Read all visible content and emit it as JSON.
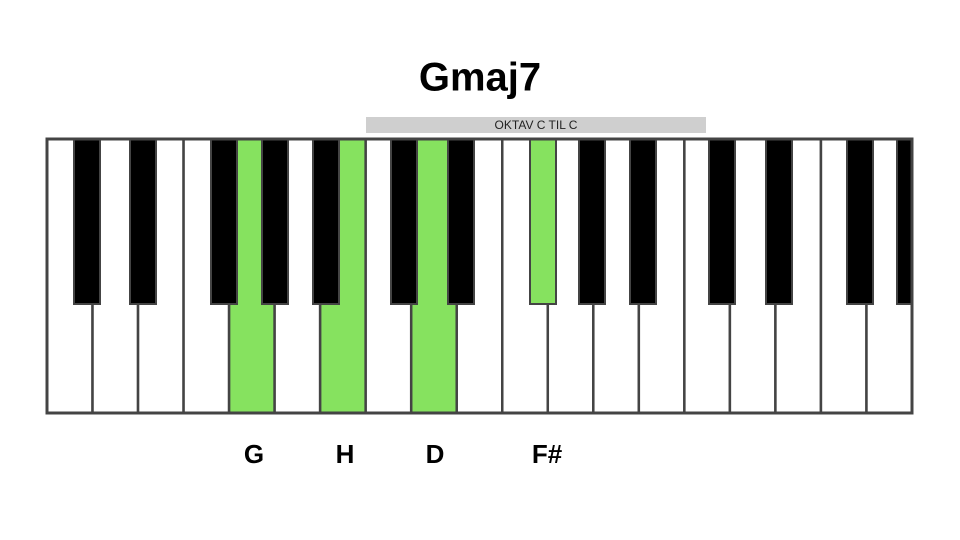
{
  "title": "Gmaj7",
  "octave_label": "OKTAV C TIL C",
  "notes": [
    "G",
    "H",
    "D",
    "F#"
  ]
}
